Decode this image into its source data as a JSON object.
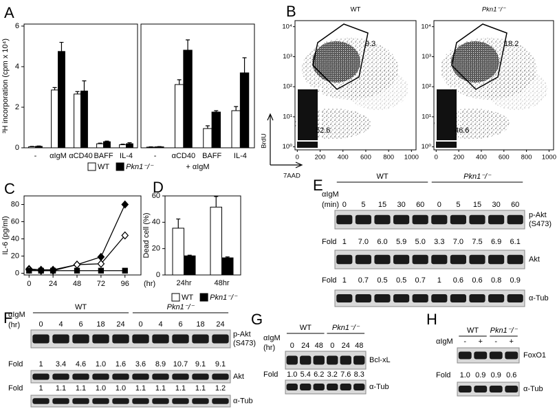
{
  "chart_data": [
    {
      "type": "bar",
      "panel": "A",
      "ylabel": "³H incorporation (cpm x 10⁴)",
      "categories": [
        "-",
        "αIgM",
        "αCD40",
        "BAFF",
        "IL-4"
      ],
      "ylim": [
        0,
        6.1
      ],
      "yticks": [
        0,
        2,
        4,
        6
      ],
      "legend": "bottom",
      "series": [
        {
          "name": "WT",
          "color": "#ffffff",
          "values": [
            0.05,
            2.85,
            2.65,
            0.2,
            0.15
          ],
          "errors": [
            0.02,
            0.12,
            0.12,
            0.03,
            0.03
          ]
        },
        {
          "name": "Pkn1⁻/⁻",
          "color": "#000000",
          "values": [
            0.07,
            4.75,
            2.8,
            0.3,
            0.2
          ],
          "errors": [
            0.02,
            0.45,
            0.5,
            0.03,
            0.05
          ]
        }
      ]
    },
    {
      "type": "bar",
      "xlabel": "+ αIgM",
      "categories": [
        "-",
        "αCD40",
        "BAFF",
        "IL-4"
      ],
      "ylim": [
        0,
        9
      ],
      "series": [
        {
          "color": "#ffffff",
          "values": [
            0.05,
            4.6,
            1.4,
            2.7
          ],
          "errors": [
            0.02,
            0.35,
            0.2,
            0.3
          ]
        },
        {
          "color": "#000000",
          "values": [
            0.07,
            7.1,
            2.6,
            5.45
          ],
          "errors": [
            0.02,
            0.75,
            0.1,
            1.1
          ]
        }
      ]
    },
    {
      "type": "line",
      "panel": "C",
      "ylabel": "IL-6 (pg/ml)",
      "xlabel": "(hr)",
      "x": [
        0,
        12,
        24,
        48,
        72,
        96
      ],
      "xlim": [
        -5,
        112
      ],
      "xticks": [
        0,
        24,
        48,
        72,
        96
      ],
      "ylim": [
        -2,
        90
      ],
      "yticks": [
        0,
        20,
        40,
        60,
        80
      ],
      "series": [
        {
          "color": "#000000",
          "marker": "diamond",
          "filled": true,
          "values": [
            5,
            4,
            4,
            10,
            19,
            80
          ]
        },
        {
          "color": "#000000",
          "marker": "diamond",
          "filled": false,
          "values": [
            4,
            3,
            3,
            10,
            11,
            44
          ]
        },
        {
          "color": "#000000",
          "marker": "square",
          "filled": true,
          "values": [
            3,
            3,
            3,
            3,
            3,
            3
          ]
        }
      ]
    },
    {
      "type": "bar",
      "panel": "D",
      "ylabel": "Dead cell (%)",
      "categories": [
        "24hr",
        "48hr"
      ],
      "ylim": [
        0,
        60
      ],
      "yticks": [
        0,
        20,
        40,
        60
      ],
      "legend": "bottom",
      "series": [
        {
          "name": "WT",
          "color": "#ffffff",
          "values": [
            35.5,
            51.5
          ],
          "errors": [
            7,
            8
          ]
        },
        {
          "name": "Pkn1⁻/⁻",
          "color": "#000000",
          "values": [
            14.5,
            13
          ],
          "errors": [
            0.5,
            0.7
          ]
        }
      ]
    }
  ],
  "flow_panel": {
    "panel": "B",
    "ylabel": "BrdU",
    "xlabel": "7AAD",
    "xlim": [
      -20,
      1040
    ],
    "xticks": [
      0,
      200,
      400,
      600,
      800,
      1000
    ],
    "ylim": [
      -0.1,
      4.2
    ],
    "yticks": [
      {
        "value": 0,
        "label": "10⁰"
      },
      {
        "value": 1,
        "label": "10¹"
      },
      {
        "value": 2,
        "label": "10²"
      },
      {
        "value": 3,
        "label": "10³"
      },
      {
        "value": 4,
        "label": "10⁴"
      }
    ],
    "plots": [
      {
        "title": "WT",
        "gates": [
          9.3,
          52.6
        ]
      },
      {
        "title": "Pkn1⁻/⁻",
        "gates": [
          18.2,
          46.6
        ]
      }
    ]
  },
  "blots": [
    {
      "panel": "E",
      "treatment": [
        "αIgM",
        "(min)"
      ],
      "groups": [
        {
          "name": "WT",
          "lanes": [
            0,
            5,
            15,
            30,
            60
          ]
        },
        {
          "name": "Pkn1⁻/⁻",
          "lanes": [
            0,
            5,
            15,
            30,
            60
          ]
        }
      ],
      "rows": [
        {
          "protein": [
            "p-Akt",
            "(S473)"
          ],
          "fold_label": "Fold",
          "fold": [
            "1",
            "7.0",
            "6.0",
            "5.9",
            "5.0",
            "3.3",
            "7.0",
            "7.5",
            "6.9",
            "6.1"
          ]
        },
        {
          "protein": [
            "Akt"
          ],
          "fold_label": "Fold",
          "fold": [
            "1",
            "0.7",
            "0.5",
            "0.5",
            "0.7",
            "1",
            "0.6",
            "0.6",
            "0.8",
            "0.9"
          ]
        },
        {
          "protein": [
            "α-Tub"
          ]
        }
      ]
    },
    {
      "panel": "F",
      "treatment": [
        "αIgM",
        "(hr)"
      ],
      "groups": [
        {
          "name": "WT",
          "lanes": [
            0,
            4,
            6,
            18,
            24
          ]
        },
        {
          "name": "Pkn1⁻/⁻",
          "lanes": [
            0,
            4,
            6,
            18,
            24
          ]
        }
      ],
      "rows": [
        {
          "protein": [
            "p-Akt",
            "(S473)"
          ],
          "fold_label": "Fold",
          "fold": [
            "1",
            "3.4",
            "4.6",
            "1.0",
            "1.6",
            "3.6",
            "8.9",
            "10.7",
            "9.1",
            "9.1"
          ]
        },
        {
          "protein": [
            "Akt"
          ],
          "fold_label": "Fold",
          "fold": [
            "1",
            "1.1",
            "1.1",
            "1.0",
            "1.0",
            "1.1",
            "1.1",
            "1.1",
            "1.1",
            "1.2"
          ]
        },
        {
          "protein": [
            "α-Tub"
          ]
        }
      ]
    },
    {
      "panel": "G",
      "treatment": [
        "αIgM",
        "(hr)"
      ],
      "groups": [
        {
          "name": "WT",
          "lanes": [
            0,
            24,
            48
          ]
        },
        {
          "name": "Pkn1⁻/⁻",
          "lanes": [
            0,
            24,
            48
          ]
        }
      ],
      "rows": [
        {
          "protein": [
            "Bcl-xL"
          ],
          "fold_label": "Fold",
          "fold": [
            "1.0",
            "5.4",
            "6.2",
            "3.2",
            "7.6",
            "8.3"
          ]
        },
        {
          "protein": [
            "α-Tub"
          ]
        }
      ]
    },
    {
      "panel": "H",
      "treatment": [
        "αIgM"
      ],
      "groups": [
        {
          "name": "WT",
          "lanes": [
            "-",
            "+"
          ]
        },
        {
          "name": "Pkn1⁻/⁻",
          "lanes": [
            "-",
            "+"
          ]
        }
      ],
      "rows": [
        {
          "protein": [
            "FoxO1"
          ],
          "fold_label": "Fold",
          "fold": [
            "1.0",
            "0.9",
            "0.9",
            "0.6"
          ]
        },
        {
          "protein": [
            "α-Tub"
          ]
        }
      ]
    }
  ]
}
